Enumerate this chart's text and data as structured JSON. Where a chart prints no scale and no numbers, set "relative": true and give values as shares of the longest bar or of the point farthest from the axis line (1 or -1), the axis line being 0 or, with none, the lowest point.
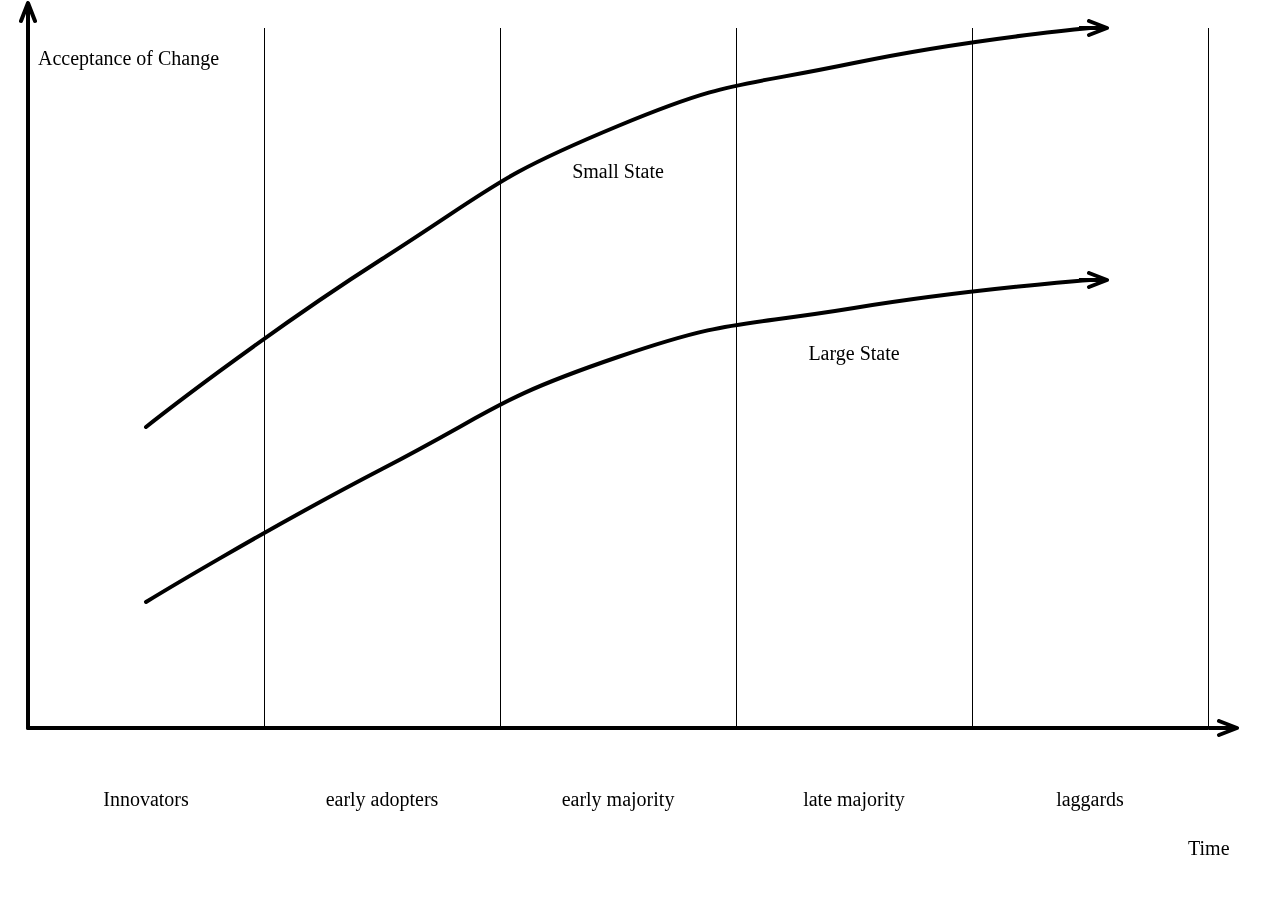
{
  "chart_data": {
    "type": "line",
    "relative": true,
    "xlabel": "Time",
    "ylabel": "Acceptance of Change",
    "categories": [
      "Innovators",
      "early adopters",
      "early majority",
      "late majority",
      "laggards"
    ],
    "series": [
      {
        "name": "Small State",
        "color": "#000000",
        "values": [
          0.43,
          0.67,
          0.86,
          0.95,
          1
        ]
      },
      {
        "name": "Large State",
        "color": "#000000",
        "values": [
          0.18,
          0.37,
          0.53,
          0.6,
          0.64
        ]
      }
    ],
    "grid": "x",
    "legend": false,
    "marker": "none",
    "line_style": "solid"
  }
}
